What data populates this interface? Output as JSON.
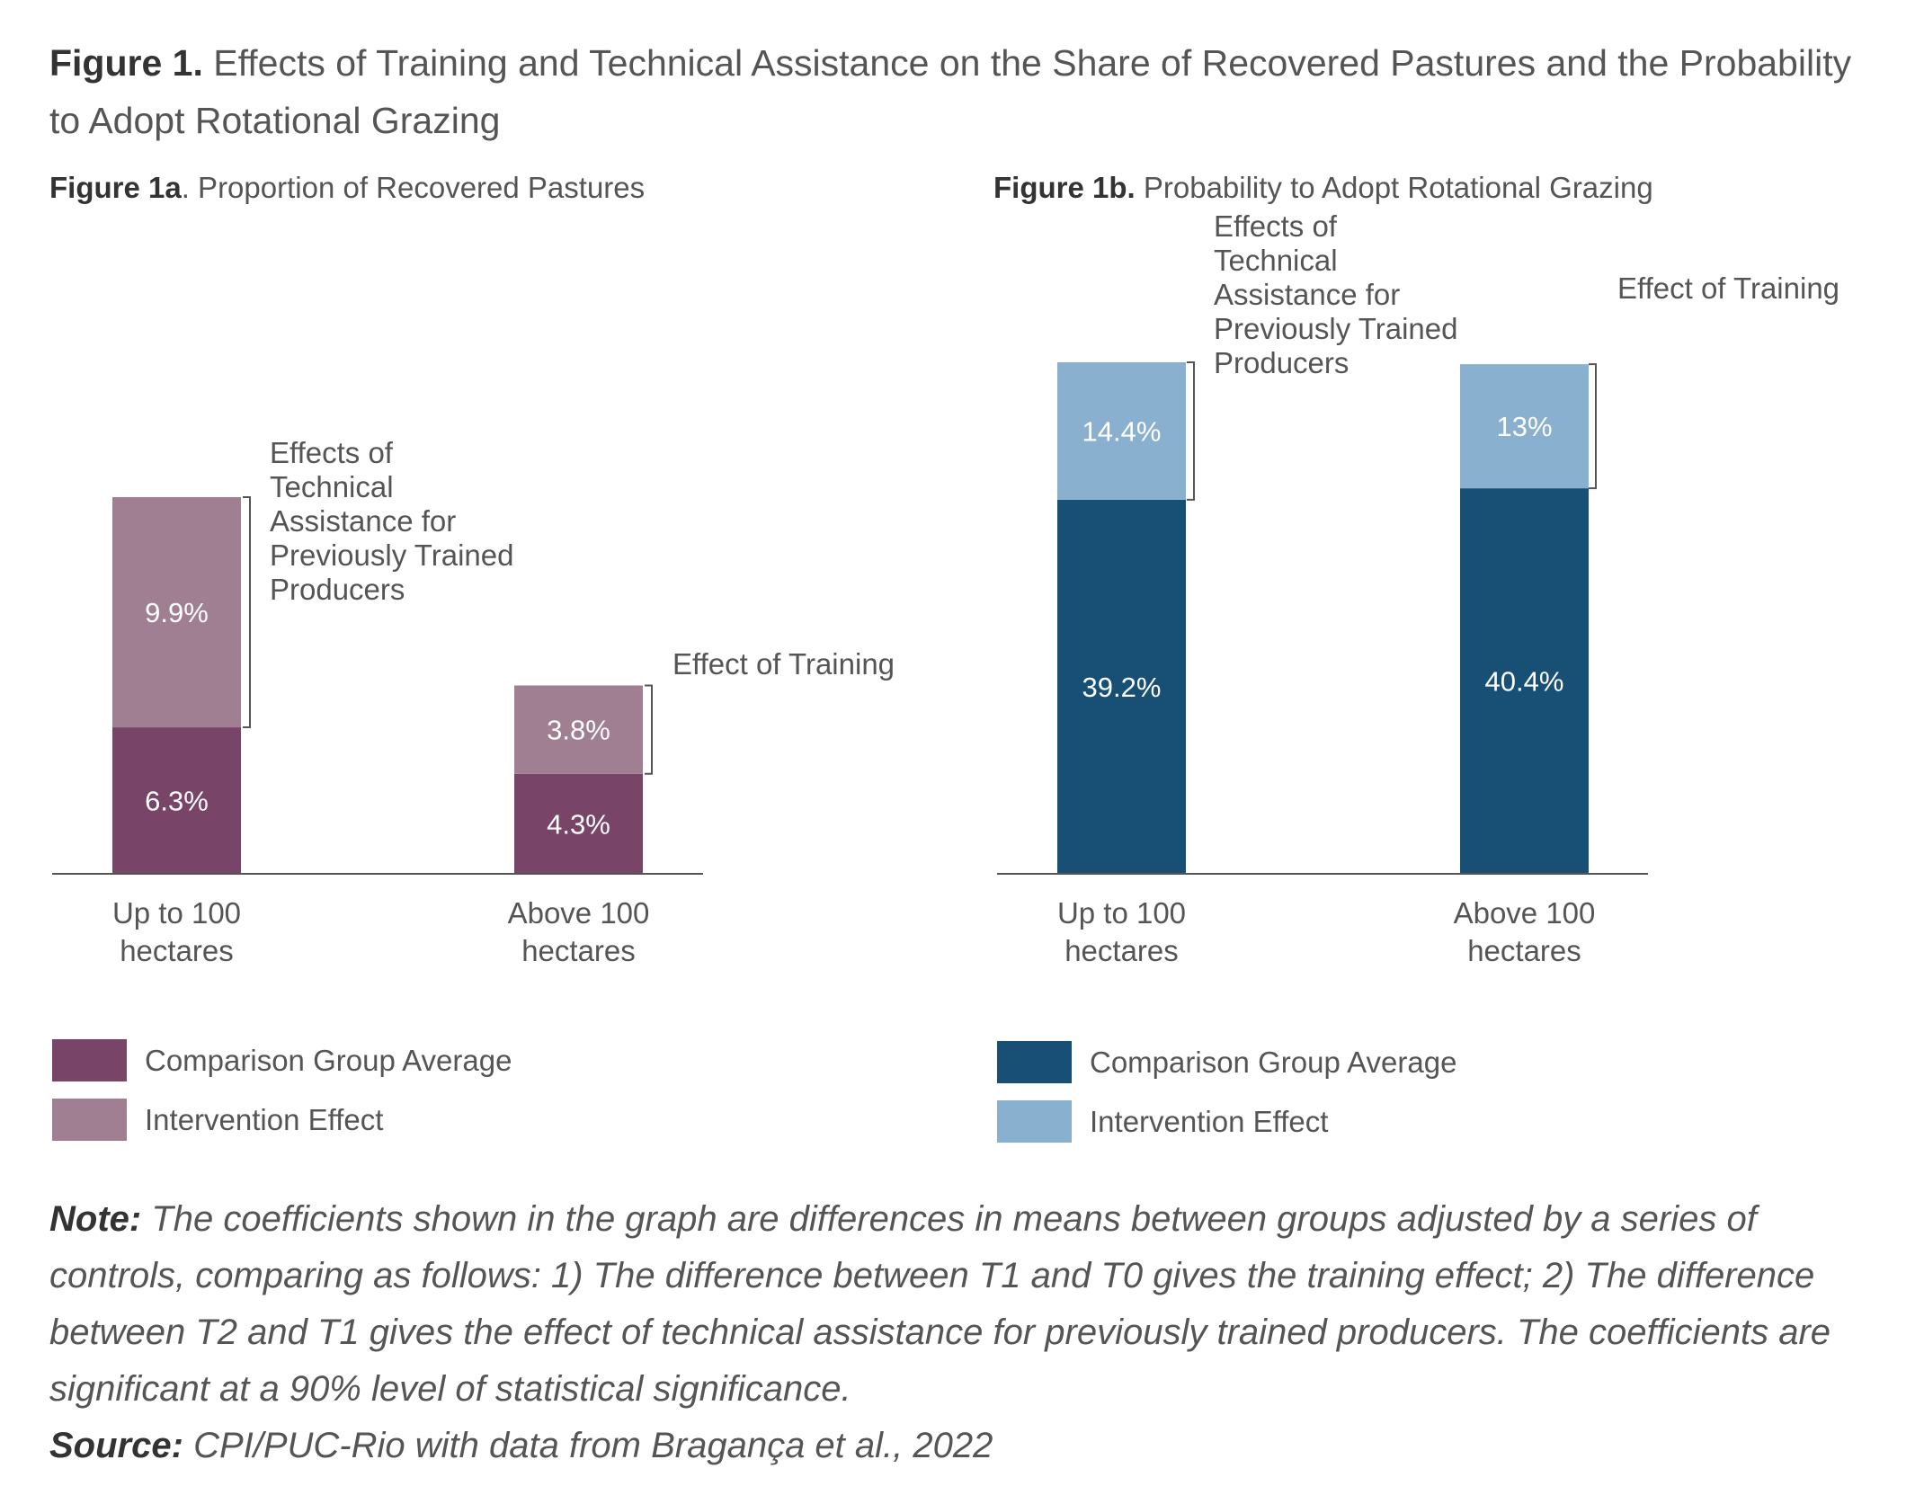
{
  "figure": {
    "label": "Figure 1.",
    "title": "Effects of Training and Technical Assistance on the Share of Recovered Pastures and the Probability to Adopt Rotational Grazing"
  },
  "chart_data": [
    {
      "type": "bar",
      "stacked": true,
      "label": "Figure 1a",
      "title": ". Proportion of Recovered Pastures",
      "categories": [
        "Up to 100 hectares",
        "Above 100 hectares"
      ],
      "series": [
        {
          "name": "Comparison Group Average",
          "values": [
            6.3,
            4.3
          ],
          "labels": [
            "6.3%",
            "4.3%"
          ],
          "color": "#784468"
        },
        {
          "name": "Intervention Effect",
          "values": [
            9.9,
            3.8
          ],
          "labels": [
            "9.9%",
            "3.8%"
          ],
          "color": "#a17f93"
        }
      ],
      "annotations": [
        "Effects of Technical Assistance for Previously Trained Producers",
        "Effect of Training"
      ],
      "ylim": [
        0,
        22
      ],
      "legend": "bottom-left",
      "grid": false
    },
    {
      "type": "bar",
      "stacked": true,
      "label": "Figure 1b.",
      "title": "Probability to Adopt Rotational Grazing",
      "categories": [
        "Up to 100 hectares",
        "Above 100 hectares"
      ],
      "series": [
        {
          "name": "Comparison Group Average",
          "values": [
            39.2,
            40.4
          ],
          "labels": [
            "39.2%",
            "40.4%"
          ],
          "color": "#174f75"
        },
        {
          "name": "Intervention Effect",
          "values": [
            14.4,
            13
          ],
          "labels": [
            "14.4%",
            "13%"
          ],
          "color": "#8ab0d0"
        }
      ],
      "annotations": [
        "Effects of Technical Assistance for Previously Trained Producers",
        "Effect of Training"
      ],
      "ylim": [
        0,
        53.6
      ],
      "legend": "bottom-left",
      "grid": false
    }
  ],
  "note": {
    "label": "Note:",
    "text": "The coefficients shown in the graph are differences in means between groups adjusted by a series of controls, comparing as follows: 1) The difference between T1 and T0 gives the training effect; 2) The difference between T2 and T1 gives the effect of technical assistance for previously trained producers. The coefficients are significant at a 90% level of statistical significance."
  },
  "source": {
    "label": "Source:",
    "text": "CPI/PUC-Rio with data from Bragança et al., 2022"
  }
}
